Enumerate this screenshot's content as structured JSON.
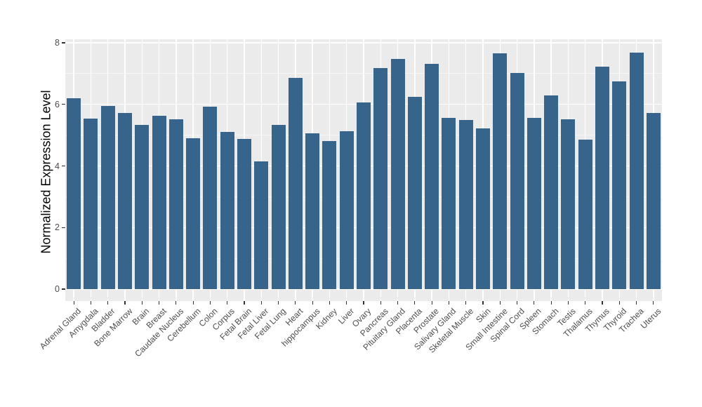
{
  "chart_data": {
    "type": "bar",
    "title": "",
    "xlabel": "",
    "ylabel": "Normalized Expression Level",
    "ylim": [
      0,
      8
    ],
    "yticks": [
      0,
      2,
      4,
      6,
      8
    ],
    "ytick_labels": [
      "0",
      "2",
      "4",
      "6",
      "8"
    ],
    "minor_yticks": [
      1,
      3,
      5,
      7
    ],
    "legend": "none",
    "grid": "white major and minor gridlines on gray panel",
    "panel_bg": "#EBEBEB",
    "bar_color": "#36648B",
    "categories": [
      "Adrenal Gland",
      "Amygdala",
      "Bladder",
      "Bone Marrow",
      "Brain",
      "Breast",
      "Caudate Nucleus",
      "Cerebellum",
      "Colon",
      "Corpus",
      "Fetal Brain",
      "Fetal Liver",
      "Fetal Lung",
      "Heart",
      "hippocampus",
      "Kidney",
      "Liver",
      "Ovary",
      "Pancreas",
      "Pituitary Gland",
      "Placenta",
      "Prostate",
      "Salivary Gland",
      "Skeletal Muscle",
      "Skin",
      "Small Intestine",
      "Spinal Cord",
      "Spleen",
      "Stomach",
      "Testis",
      "Thalamus",
      "Thymus",
      "Thyroid",
      "Trachea",
      "Uterus"
    ],
    "values": [
      6.19,
      5.53,
      5.95,
      5.71,
      5.33,
      5.64,
      5.51,
      4.91,
      5.92,
      5.11,
      4.87,
      4.15,
      5.34,
      6.87,
      5.07,
      4.81,
      5.13,
      6.07,
      7.19,
      7.48,
      6.24,
      7.31,
      5.56,
      5.5,
      5.23,
      7.65,
      7.03,
      5.56,
      6.28,
      5.51,
      4.85,
      7.23,
      6.74,
      7.69,
      5.72
    ]
  }
}
